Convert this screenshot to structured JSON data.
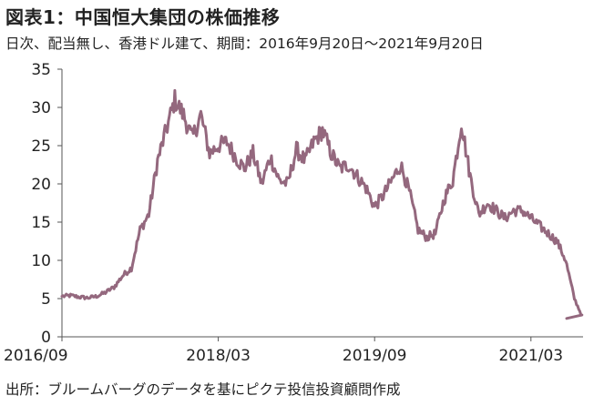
{
  "header": {
    "title": "図表1：中国恒大集団の株価推移",
    "subtitle": "日次、配当無し、香港ドル建て、期間：2016年9月20日～2021年9月20日"
  },
  "footer": {
    "source": "出所：ブルームバーグのデータを基にピクテ投信投資顧問作成"
  },
  "chart_data": {
    "type": "line",
    "title": "",
    "xlabel": "",
    "ylabel": "",
    "ylim": [
      0,
      35
    ],
    "yticks": [
      0,
      5,
      10,
      15,
      20,
      25,
      30,
      35
    ],
    "xticks": [
      "2016/09",
      "2018/03",
      "2019/09",
      "2021/03"
    ],
    "xlim": [
      "2016/09",
      "2021/09"
    ],
    "grid": false,
    "legend": "none",
    "line_color": "#94687e",
    "series": [
      {
        "x": [
          "2016/09",
          "2016/10",
          "2016/11",
          "2016/12",
          "2017/01",
          "2017/02",
          "2017/03",
          "2017/04",
          "2017/05",
          "2017/06",
          "2017/07",
          "2017/08",
          "2017/09",
          "2017/10",
          "2017/11",
          "2017/12",
          "2018/01",
          "2018/02",
          "2018/03",
          "2018/04",
          "2018/05",
          "2018/06",
          "2018/07",
          "2018/08",
          "2018/09",
          "2018/10",
          "2018/11",
          "2018/12",
          "2019/01",
          "2019/02",
          "2019/03",
          "2019/04",
          "2019/05",
          "2019/06",
          "2019/07",
          "2019/08",
          "2019/09",
          "2019/10",
          "2019/11",
          "2019/12",
          "2020/01",
          "2020/02",
          "2020/03",
          "2020/04",
          "2020/05",
          "2020/06",
          "2020/07",
          "2020/08",
          "2020/09",
          "2020/10",
          "2020/11",
          "2020/12",
          "2021/01",
          "2021/02",
          "2021/03",
          "2021/04",
          "2021/05",
          "2021/06",
          "2021/07",
          "2021/08",
          "2021/09"
        ],
        "values": [
          5.3,
          5.4,
          5.2,
          5.1,
          5.3,
          5.8,
          6.5,
          8.0,
          9.0,
          14.0,
          16.0,
          23.0,
          27.0,
          31.0,
          29.0,
          26.0,
          29.0,
          24.0,
          25.0,
          25.5,
          23.5,
          22.0,
          24.0,
          20.0,
          23.5,
          20.5,
          20.0,
          24.5,
          23.0,
          25.5,
          27.0,
          24.0,
          22.0,
          22.5,
          21.0,
          19.5,
          17.0,
          18.5,
          20.5,
          22.5,
          19.0,
          14.0,
          13.0,
          13.5,
          18.0,
          20.5,
          28.0,
          21.0,
          16.0,
          17.5,
          16.5,
          15.5,
          16.5,
          16.5,
          15.5,
          14.5,
          13.5,
          12.5,
          10.0,
          5.0,
          2.4
        ]
      }
    ]
  }
}
